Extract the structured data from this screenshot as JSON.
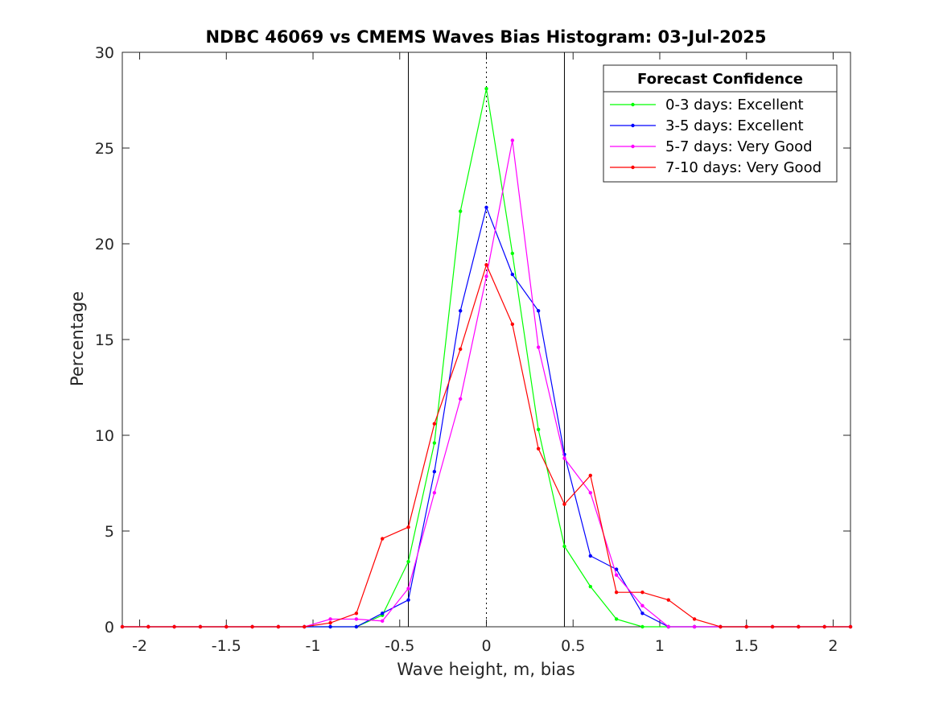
{
  "chart_data": {
    "type": "line",
    "title": "NDBC 46069 vs CMEMS Waves Bias Histogram: 03-Jul-2025",
    "xlabel": "Wave height, m, bias",
    "ylabel": "Percentage",
    "xlim": [
      -2.1,
      2.1
    ],
    "ylim": [
      0,
      30
    ],
    "xticks": [
      -2,
      -1.5,
      -1,
      -0.5,
      0,
      0.5,
      1,
      1.5,
      2
    ],
    "xtick_labels": [
      "-2",
      "-1.5",
      "-1",
      "-0.5",
      "0",
      "0.5",
      "1",
      "1.5",
      "2"
    ],
    "yticks": [
      0,
      5,
      10,
      15,
      20,
      25,
      30
    ],
    "ytick_labels": [
      "0",
      "5",
      "10",
      "15",
      "20",
      "25",
      "30"
    ],
    "grid": false,
    "reference_lines": [
      {
        "x": -0.45,
        "style": "solid"
      },
      {
        "x": 0,
        "style": "dotted"
      },
      {
        "x": 0.45,
        "style": "solid"
      }
    ],
    "legend": {
      "title": "Forecast Confidence",
      "placement": "top-right"
    },
    "x": [
      -2.1,
      -1.95,
      -1.8,
      -1.65,
      -1.5,
      -1.35,
      -1.2,
      -1.05,
      -0.9,
      -0.75,
      -0.6,
      -0.45,
      -0.3,
      -0.15,
      0,
      0.15,
      0.3,
      0.45,
      0.6,
      0.75,
      0.9,
      1.05,
      1.2,
      1.35,
      1.5,
      1.65,
      1.8,
      1.95,
      2.1
    ],
    "series": [
      {
        "name": "0-3 days: Excellent",
        "color": "#00ff00",
        "values": [
          0,
          0,
          0,
          0,
          0,
          0,
          0,
          0,
          0,
          0,
          0.6,
          3.4,
          9.6,
          21.7,
          28.1,
          19.5,
          10.3,
          4.2,
          2.1,
          0.4,
          0,
          0,
          0,
          0,
          0,
          0,
          0,
          0,
          0
        ]
      },
      {
        "name": "3-5 days: Excellent",
        "color": "#0000ff",
        "values": [
          0,
          0,
          0,
          0,
          0,
          0,
          0,
          0,
          0,
          0,
          0.7,
          1.4,
          8.1,
          16.5,
          21.9,
          18.4,
          16.5,
          9.0,
          3.7,
          3.0,
          0.7,
          0,
          0,
          0,
          0,
          0,
          0,
          0,
          0
        ]
      },
      {
        "name": "5-7 days: Very Good",
        "color": "#ff00ff",
        "values": [
          0,
          0,
          0,
          0,
          0,
          0,
          0,
          0,
          0.4,
          0.4,
          0.3,
          2.0,
          7.0,
          11.9,
          18.3,
          25.4,
          14.6,
          8.8,
          7.0,
          2.7,
          1.1,
          0,
          0,
          0,
          0,
          0,
          0,
          0,
          0
        ]
      },
      {
        "name": "7-10 days: Very Good",
        "color": "#ff0000",
        "values": [
          0,
          0,
          0,
          0,
          0,
          0,
          0,
          0,
          0.2,
          0.7,
          4.6,
          5.2,
          10.6,
          14.5,
          18.9,
          15.8,
          9.3,
          6.4,
          7.9,
          1.8,
          1.8,
          1.4,
          0.4,
          0,
          0,
          0,
          0,
          0,
          0
        ]
      }
    ]
  }
}
